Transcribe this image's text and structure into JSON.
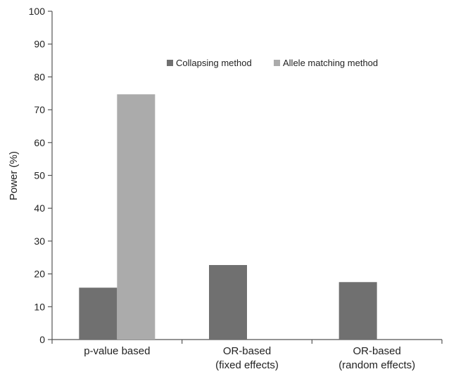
{
  "chart_data": {
    "type": "bar",
    "title": "",
    "xlabel": "",
    "ylabel": "Power (%)",
    "ylim": [
      0,
      100
    ],
    "yticks": [
      0,
      10,
      20,
      30,
      40,
      50,
      60,
      70,
      80,
      90,
      100
    ],
    "grid": false,
    "legend_position": "top-right",
    "categories": [
      [
        "p-value based"
      ],
      [
        "OR-based",
        "(fixed effects)"
      ],
      [
        "OR-based",
        "(random effects)"
      ]
    ],
    "series": [
      {
        "name": "Collapsing method",
        "color": "#707070",
        "values": [
          15.8,
          22.7,
          17.5
        ]
      },
      {
        "name": "Allele matching method",
        "color": "#ababab",
        "values": [
          74.7,
          null,
          null
        ]
      }
    ]
  }
}
